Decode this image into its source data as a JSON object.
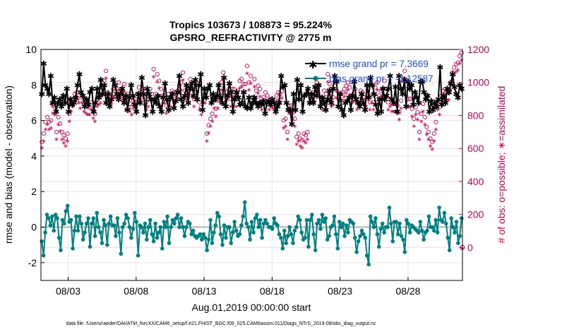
{
  "chart_data": {
    "type": "line",
    "title": "Tropics 103673 / 108873 = 95.224%",
    "subtitle": "GPSRO_REFRACTIVITY @ 2775 m",
    "xlabel": "Aug.01,2019 00:00:00 start",
    "ylabel": "rmse and bias (model - observation)",
    "ylabel_right": "# of obs: o=possible; ∗=assimilated",
    "footnote": "data file: /Users/raeder/DAI/ATM_forcXX/CAM6_setup/f.e21.FHIST_BGC.f09_025.CAM6assim.011/Diags_NTrS_2019-08/obs_diag_output.nc",
    "x_tick_labels": [
      "08/03",
      "08/08",
      "08/13",
      "08/18",
      "08/23",
      "08/28"
    ],
    "x_tick_days": [
      3,
      8,
      13,
      18,
      23,
      28
    ],
    "xlim_days": [
      1,
      32
    ],
    "ylim": [
      -3,
      10
    ],
    "y_ticks": [
      "-2",
      "0",
      "2",
      "4",
      "6",
      "8",
      "10"
    ],
    "ylim_right": [
      -200,
      1200
    ],
    "y_ticks_right": [
      "0",
      "200",
      "400",
      "600",
      "800",
      "1000",
      "1200"
    ],
    "grid": true,
    "legend_position": "top-right",
    "colors": {
      "rmse": "#000000",
      "bias": "#008080",
      "obs": "#cc0055",
      "zero_line": "#b4b4b4",
      "legend_text": "#1a4ee8"
    },
    "series": [
      {
        "name": "rmse grand pr = 7.3669",
        "axis": "left",
        "marker": "asterisk",
        "color": "#000000",
        "values": [
          7.5,
          9.2,
          8.0,
          7.8,
          7.5,
          8.5,
          7.0,
          7.3,
          6.5,
          7.0,
          7.2,
          6.8,
          7.4,
          7.0,
          7.8,
          6.5,
          7.2,
          6.9,
          7.0,
          7.3,
          8.0,
          8.6,
          7.6,
          7.4,
          6.8,
          7.2,
          6.9,
          7.6,
          7.8,
          6.5,
          7.0,
          7.8,
          7.3,
          8.3,
          7.5,
          8.0,
          7.0,
          7.5,
          6.8,
          7.2,
          8.3,
          8.0,
          7.5,
          7.2,
          7.5,
          7.8,
          7.0,
          7.4,
          6.6,
          7.3,
          8.0,
          7.4,
          6.9,
          6.5,
          7.5,
          7.0,
          8.4,
          7.5,
          6.3,
          7.8,
          7.5,
          7.2,
          6.5,
          7.2,
          7.0,
          7.4,
          6.8,
          6.5,
          7.3,
          8.1,
          7.2,
          6.6,
          7.3,
          7.5,
          6.7,
          7.1,
          7.6,
          8.5,
          7.2,
          6.8,
          7.4,
          8.0,
          7.0,
          7.8,
          8.1,
          7.4,
          8.3,
          7.2,
          8.0,
          8.6,
          6.6,
          7.8,
          7.3,
          7.8,
          8.0,
          7.0,
          7.5,
          7.2,
          7.4,
          8.0,
          7.3,
          7.0,
          8.4,
          6.8,
          7.4,
          8.1,
          7.6,
          6.5,
          7.2,
          7.6,
          7.3,
          6.9,
          7.0,
          7.6,
          6.8,
          6.7,
          7.3,
          6.7,
          7.0,
          7.3,
          7.0,
          6.8,
          7.0,
          6.9,
          7.1,
          6.4,
          7.0,
          7.1,
          6.9,
          7.2,
          7.0,
          6.5,
          6.8,
          7.0,
          8.5,
          7.9,
          8.0,
          7.0,
          6.6,
          6.6,
          5.8,
          7.5,
          6.6,
          8.3,
          7.2,
          8.0,
          6.5,
          7.4,
          7.5,
          7.8,
          7.0,
          7.5,
          7.0,
          7.9,
          7.4,
          8.0,
          6.8,
          7.3,
          7.0,
          6.6,
          7.2,
          7.7,
          7.0,
          7.8,
          8.5,
          8.2,
          6.8,
          7.5,
          6.6,
          6.3,
          7.0,
          7.1,
          7.3,
          6.6,
          7.4,
          8.2,
          7.2,
          7.0,
          6.8,
          7.5,
          7.0,
          6.6,
          8.0,
          7.3,
          8.4,
          8.0,
          7.5,
          6.9,
          6.4,
          7.2,
          6.5,
          7.8,
          7.2,
          7.4,
          7.8,
          8.5,
          7.2,
          7.0,
          7.9,
          6.5,
          8.5,
          7.8,
          7.5,
          8.3,
          6.8,
          8.2,
          7.8,
          8.0,
          6.9,
          7.6,
          7.3,
          7.0,
          8.2,
          8.2,
          7.6,
          7.2,
          7.4,
          6.5,
          7.1,
          6.6,
          7.0,
          6.8,
          7.2,
          9.0,
          6.9,
          7.4,
          7.0,
          7.8,
          7.6,
          8.1,
          8.6,
          7.9,
          7.5,
          7.3,
          8.0,
          7.8
        ]
      },
      {
        "name": "bias grand pr = -0.12587",
        "axis": "left",
        "marker": "dot",
        "color": "#008080",
        "values": [
          -0.8,
          -1.6,
          -0.3,
          0.7,
          0.5,
          0.1,
          0.6,
          -0.2,
          0.7,
          0.5,
          -0.6,
          -1.3,
          0.4,
          0.2,
          0.9,
          1.2,
          0.3,
          0.4,
          -1.2,
          -0.2,
          0.6,
          -0.2,
          0.6,
          0.2,
          -0.7,
          -0.3,
          0.2,
          0.5,
          -1.1,
          0.2,
          0.5,
          -0.5,
          0.8,
          0.0,
          -0.3,
          -0.9,
          0.4,
          0.1,
          -1.0,
          0.2,
          0.6,
          0.1,
          0.1,
          -0.5,
          0.5,
          -0.3,
          -1.5,
          0.0,
          0.2,
          0.7,
          0.5,
          0.0,
          -0.6,
          -0.1,
          0.8,
          0.3,
          -1.6,
          0.1,
          0.0,
          -0.3,
          0.2,
          -0.7,
          0.0,
          0.4,
          -0.4,
          -0.8,
          0.2,
          -0.6,
          -0.3,
          0.0,
          -1.2,
          0.3,
          0.0,
          0.6,
          -0.9,
          0.0,
          0.4,
          0.2,
          0.5,
          0.7,
          0.0,
          0.5,
          0.0,
          -0.5,
          0.0,
          0.3,
          0.2,
          -0.4,
          -0.2,
          -0.5,
          -0.6,
          -0.5,
          -0.4,
          -0.7,
          -0.4,
          -0.6,
          -1.3,
          -0.7,
          0.4,
          -0.9,
          -0.3,
          0.1,
          0.8,
          0.6,
          -0.4,
          -1.0,
          0.1,
          -0.6,
          0.0,
          0.0,
          -0.9,
          -0.3,
          0.3,
          -0.2,
          -0.5,
          -0.4,
          0.1,
          0.6,
          1.4,
          0.2,
          0.0,
          -0.7,
          0.3,
          -0.3,
          0.5,
          0.7,
          0.0,
          0.4,
          -0.6,
          0.2,
          0.4,
          0.2,
          0.0,
          0.0,
          -0.1,
          0.5,
          0.2,
          0.1,
          -0.4,
          -0.6,
          -1.2,
          -0.2,
          -0.9,
          -0.5,
          0.0,
          -0.4,
          -0.9,
          -0.2,
          0.0,
          0.6,
          0.4,
          -0.3,
          -0.7,
          -0.6,
          0.4,
          -1.1,
          0.4,
          0.7,
          -0.4,
          -1.3,
          0.2,
          0.4,
          -0.1,
          0.7,
          0.3,
          0.5,
          -0.7,
          -0.5,
          0.0,
          0.1,
          0.6,
          -0.4,
          -1.2,
          0.3,
          0.0,
          0.2,
          -0.5,
          0.1,
          -0.3,
          0.4,
          0.3,
          0.2,
          -0.6,
          -1.4,
          -0.8,
          -0.5,
          -0.2,
          -0.4,
          -0.6,
          -1.6,
          -2.1,
          0.6,
          0.3,
          0.0,
          0.5,
          -0.4,
          -1.1,
          -0.1,
          0.2,
          -0.3,
          0.0,
          0.0,
          1.1,
          0.2,
          -0.8,
          0.3,
          0.3,
          -0.4,
          0.2,
          -0.5,
          -0.7,
          -1.4,
          0.4,
          0.2,
          -0.3,
          0.1,
          0.0,
          -0.1,
          -0.2,
          -0.3,
          0.3,
          -0.2,
          -0.7,
          -0.3,
          -0.2,
          0.6,
          0.0,
          0.0,
          -0.2,
          0.4,
          -0.3,
          1.1,
          0.4,
          0.3,
          0.8,
          0.2,
          -0.6,
          -1.3,
          0.5,
          0.0,
          -0.3,
          0.3,
          -0.9,
          -0.5,
          0.5
        ]
      },
      {
        "name": "possible",
        "axis": "right",
        "marker": "circle",
        "color": "#cc0055",
        "values": [
          640,
          690,
          760,
          790,
          760,
          770,
          860,
          850,
          700,
          790,
          750,
          700,
          680,
          660,
          690,
          810,
          870,
          900,
          930,
          940,
          920,
          890,
          920,
          870,
          860,
          850,
          850,
          880,
          830,
          810,
          900,
          910,
          920,
          970,
          1010,
          1070,
          940,
          920,
          920,
          960,
          950,
          960,
          1000,
          960,
          940,
          990,
          880,
          930,
          870,
          850,
          890,
          900,
          930,
          970,
          940,
          960,
          910,
          880,
          900,
          960,
          930,
          1080,
          930,
          1050,
          1010,
          960,
          920,
          920,
          860,
          930,
          900,
          950,
          920,
          940,
          950,
          980,
          1000,
          1060,
          950,
          940,
          980,
          1020,
          960,
          900,
          940,
          990,
          880,
          850,
          920,
          920,
          690,
          740,
          780,
          810,
          890,
          840,
          890,
          930,
          1000,
          1060,
          920,
          940,
          960,
          900,
          960,
          960,
          900,
          950,
          1010,
          1020,
          990,
          990,
          1100,
          1000,
          1040,
          910,
          1020,
          950,
          980,
          960,
          880,
          910,
          940,
          920,
          880,
          900,
          890,
          890,
          920,
          940,
          930,
          950,
          770,
          780,
          700,
          860,
          860,
          820,
          780,
          670,
          690,
          660,
          650,
          690,
          680,
          700,
          920,
          930,
          940,
          930,
          1000,
          980,
          910,
          880,
          950,
          930,
          1050,
          990,
          900,
          910,
          1000,
          950,
          900,
          930,
          940,
          960,
          980,
          1000,
          970,
          920,
          930,
          960,
          880,
          900,
          950,
          940,
          910,
          900,
          960,
          880,
          920,
          880,
          970,
          1000,
          920,
          950,
          960,
          1010,
          960,
          880,
          900,
          870,
          870,
          870,
          860,
          820,
          890,
          1010,
          1070,
          960,
          900,
          900,
          840,
          780,
          850,
          820,
          700,
          810,
          870,
          790,
          730,
          700,
          660,
          640,
          690,
          760,
          880,
          850,
          920,
          950,
          960,
          940,
          940,
          1000,
          1060,
          1090,
          1110,
          1120,
          1160,
          1180
        ]
      },
      {
        "name": "assimilated",
        "axis": "right",
        "marker": "asterisk",
        "color": "#cc0055",
        "values": [
          610,
          650,
          720,
          750,
          720,
          730,
          820,
          810,
          660,
          750,
          710,
          660,
          640,
          620,
          650,
          770,
          830,
          860,
          890,
          900,
          880,
          850,
          880,
          830,
          820,
          810,
          810,
          840,
          790,
          770,
          860,
          870,
          880,
          930,
          970,
          1030,
          900,
          880,
          880,
          920,
          910,
          920,
          960,
          920,
          900,
          950,
          840,
          890,
          830,
          810,
          850,
          860,
          890,
          930,
          900,
          920,
          870,
          840,
          860,
          920,
          890,
          1040,
          890,
          1010,
          970,
          920,
          880,
          880,
          820,
          890,
          860,
          910,
          880,
          900,
          910,
          940,
          960,
          1020,
          910,
          900,
          940,
          980,
          920,
          860,
          900,
          950,
          840,
          810,
          880,
          880,
          650,
          700,
          740,
          770,
          850,
          800,
          850,
          890,
          960,
          1020,
          880,
          900,
          920,
          860,
          920,
          920,
          860,
          910,
          970,
          980,
          950,
          950,
          1060,
          960,
          1000,
          870,
          980,
          910,
          940,
          920,
          840,
          870,
          900,
          880,
          840,
          860,
          850,
          850,
          880,
          900,
          890,
          910,
          730,
          740,
          660,
          820,
          820,
          780,
          740,
          630,
          650,
          620,
          610,
          650,
          640,
          660,
          880,
          890,
          900,
          890,
          960,
          940,
          870,
          840,
          910,
          890,
          1010,
          950,
          860,
          870,
          960,
          910,
          860,
          890,
          900,
          920,
          940,
          960,
          930,
          880,
          890,
          920,
          840,
          860,
          910,
          900,
          870,
          860,
          920,
          840,
          880,
          840,
          930,
          960,
          880,
          910,
          920,
          970,
          920,
          840,
          860,
          830,
          830,
          830,
          820,
          780,
          850,
          970,
          1030,
          920,
          860,
          860,
          800,
          740,
          810,
          780,
          660,
          770,
          830,
          750,
          690,
          660,
          620,
          600,
          650,
          720,
          840,
          810,
          880,
          910,
          920,
          900,
          900,
          960,
          1020,
          1050,
          1070,
          1080,
          1120,
          1140
        ]
      }
    ]
  }
}
